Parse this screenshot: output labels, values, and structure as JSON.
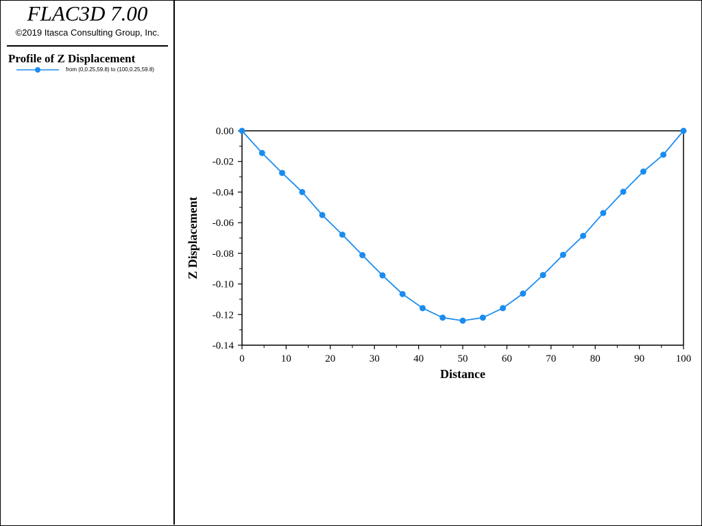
{
  "app": {
    "title": "FLAC3D 7.00",
    "copyright": "©2019 Itasca Consulting Group, Inc."
  },
  "legend": {
    "heading": "Profile of Z Displacement",
    "entries": [
      {
        "label": "from (0,0.25,59.8) to (100,0.25,59.8)",
        "color": "#1a8cf0"
      }
    ]
  },
  "chart_data": {
    "type": "line",
    "xlabel": "Distance",
    "ylabel": "Z Displacement",
    "xlim": [
      0,
      100
    ],
    "ylim": [
      -0.14,
      0.0
    ],
    "xticks": [
      0,
      10,
      20,
      30,
      40,
      50,
      60,
      70,
      80,
      90,
      100
    ],
    "xtick_labels": [
      "0",
      "10",
      "20",
      "30",
      "40",
      "50",
      "60",
      "70",
      "80",
      "90",
      "100"
    ],
    "yticks": [
      0.0,
      -0.02,
      -0.04,
      -0.06,
      -0.08,
      -0.1,
      -0.12,
      -0.14
    ],
    "ytick_labels": [
      "0.00",
      "-0.02",
      "-0.04",
      "-0.06",
      "-0.08",
      "-0.10",
      "-0.12",
      "-0.14"
    ],
    "grid": false,
    "series": [
      {
        "name": "from (0,0.25,59.8) to (100,0.25,59.8)",
        "color": "#1a8cf0",
        "marker": "circle",
        "x": [
          0,
          4.55,
          9.09,
          13.64,
          18.18,
          22.73,
          27.27,
          31.82,
          36.36,
          40.91,
          45.45,
          50,
          54.55,
          59.09,
          63.64,
          68.18,
          72.73,
          77.27,
          81.82,
          86.36,
          90.91,
          95.45,
          100
        ],
        "y": [
          0.0,
          -0.0145,
          -0.0275,
          -0.04,
          -0.055,
          -0.0678,
          -0.0812,
          -0.0944,
          -0.1066,
          -0.1158,
          -0.122,
          -0.124,
          -0.122,
          -0.1158,
          -0.1063,
          -0.0942,
          -0.081,
          -0.0686,
          -0.0537,
          -0.0398,
          -0.0266,
          -0.0156,
          0.0
        ]
      }
    ]
  }
}
